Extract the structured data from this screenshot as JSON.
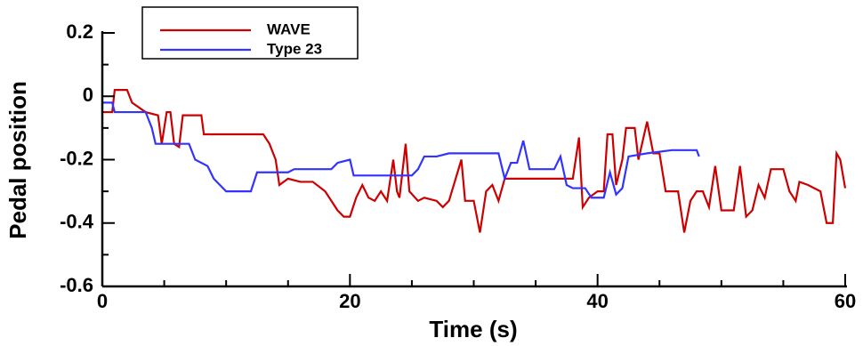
{
  "chart_data": {
    "type": "line",
    "xlabel": "Time (s)",
    "ylabel": "Pedal position",
    "xlim": [
      0,
      60
    ],
    "ylim": [
      -0.6,
      0.2
    ],
    "xticks": [
      0,
      20,
      40,
      60
    ],
    "yticks": [
      -0.6,
      -0.4,
      -0.2,
      0,
      0.2
    ],
    "xminorticks": [
      5,
      10,
      15,
      25,
      30,
      35,
      45,
      50,
      55
    ],
    "yminorticks": [
      -0.5,
      -0.3,
      -0.1,
      0.1
    ],
    "grid": false,
    "legend": "upper left",
    "series": [
      {
        "name": "WAVE",
        "color": "#cc0000",
        "x": [
          0,
          0.8,
          1,
          2,
          2.4,
          3.5,
          4.5,
          4.8,
          5.2,
          5.5,
          5.8,
          6.2,
          6.5,
          8,
          8.2,
          13,
          13.5,
          14,
          14.3,
          15,
          16,
          17,
          18,
          19,
          19.5,
          20,
          20.5,
          21,
          21.5,
          22,
          22.5,
          23,
          23.5,
          23.8,
          24,
          24.5,
          24.8,
          25.5,
          26,
          27,
          27.5,
          28,
          29,
          29.3,
          30,
          30.5,
          31,
          31.5,
          32,
          32.5,
          38,
          38.5,
          38.8,
          39.3,
          40,
          40.5,
          40.8,
          41.2,
          41.5,
          42,
          42.3,
          43,
          43.3,
          44,
          44.5,
          45,
          45.5,
          46.5,
          47,
          47.5,
          48,
          48.5,
          49,
          49.5,
          50,
          51,
          51.5,
          52,
          52.5,
          53,
          53.5,
          54,
          55,
          55.5,
          56,
          56.3,
          57,
          58,
          58.5,
          59,
          59.3,
          59.6,
          60
        ],
        "values": [
          -0.05,
          -0.05,
          0.02,
          0.02,
          -0.02,
          -0.05,
          -0.06,
          -0.15,
          -0.05,
          -0.05,
          -0.15,
          -0.16,
          -0.06,
          -0.06,
          -0.12,
          -0.12,
          -0.15,
          -0.2,
          -0.28,
          -0.26,
          -0.27,
          -0.27,
          -0.3,
          -0.36,
          -0.38,
          -0.38,
          -0.32,
          -0.28,
          -0.32,
          -0.33,
          -0.3,
          -0.33,
          -0.2,
          -0.3,
          -0.32,
          -0.15,
          -0.3,
          -0.33,
          -0.32,
          -0.33,
          -0.35,
          -0.33,
          -0.2,
          -0.33,
          -0.33,
          -0.43,
          -0.3,
          -0.28,
          -0.33,
          -0.26,
          -0.26,
          -0.13,
          -0.35,
          -0.32,
          -0.3,
          -0.3,
          -0.12,
          -0.12,
          -0.28,
          -0.2,
          -0.1,
          -0.1,
          -0.2,
          -0.08,
          -0.18,
          -0.18,
          -0.3,
          -0.3,
          -0.43,
          -0.33,
          -0.3,
          -0.3,
          -0.35,
          -0.22,
          -0.36,
          -0.36,
          -0.22,
          -0.38,
          -0.36,
          -0.28,
          -0.32,
          -0.23,
          -0.23,
          -0.3,
          -0.33,
          -0.27,
          -0.28,
          -0.3,
          -0.4,
          -0.4,
          -0.18,
          -0.2,
          -0.29
        ]
      },
      {
        "name": "Type 23",
        "color": "#3333ff",
        "x": [
          0,
          0.8,
          1,
          3.5,
          4,
          4.3,
          7,
          7.5,
          8.5,
          9,
          10,
          12,
          12.5,
          15,
          15.5,
          18.5,
          19,
          20,
          20.3,
          25,
          25.5,
          26,
          27,
          28,
          32,
          32.5,
          33,
          33.5,
          34,
          34.5,
          36.5,
          37,
          37.5,
          38,
          39,
          39.5,
          40.5,
          41,
          41.5,
          42,
          42.5,
          44,
          46,
          48,
          48.2
        ],
        "values": [
          -0.02,
          -0.02,
          -0.05,
          -0.05,
          -0.1,
          -0.15,
          -0.15,
          -0.2,
          -0.22,
          -0.26,
          -0.3,
          -0.3,
          -0.24,
          -0.24,
          -0.23,
          -0.23,
          -0.21,
          -0.2,
          -0.25,
          -0.25,
          -0.23,
          -0.19,
          -0.19,
          -0.18,
          -0.18,
          -0.26,
          -0.21,
          -0.21,
          -0.14,
          -0.23,
          -0.23,
          -0.19,
          -0.28,
          -0.29,
          -0.29,
          -0.32,
          -0.32,
          -0.24,
          -0.31,
          -0.29,
          -0.19,
          -0.18,
          -0.17,
          -0.17,
          -0.19
        ]
      }
    ]
  }
}
